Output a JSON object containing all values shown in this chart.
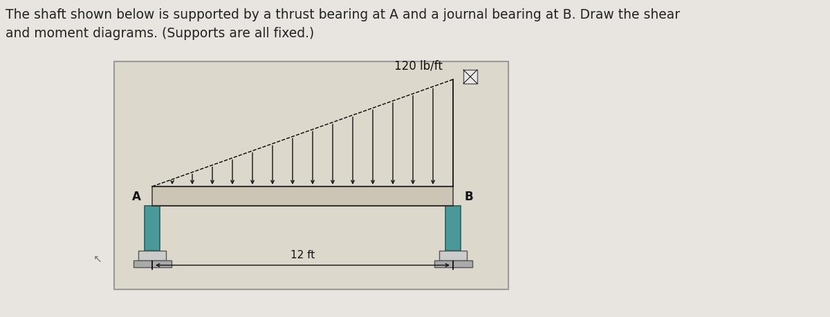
{
  "title_text": "The shaft shown below is supported by a thrust bearing at A and a journal bearing at B. Draw the shear\nand moment diagrams. (Supports are all fixed.)",
  "title_fontsize": 13.5,
  "title_color": "#222222",
  "page_bg": "#e8e4e0",
  "box_bg": "#ddd8cc",
  "box_edge": "#999999",
  "beam_color": "#ccc5b5",
  "beam_edge": "#444444",
  "beam_line_color": "#222222",
  "bearing_color": "#4a9898",
  "bearing_edge": "#2a6060",
  "base_color": "#cccccc",
  "base_edge": "#555555",
  "ground_color": "#aaaaaa",
  "arrow_color": "#111111",
  "load_label": "120 lb/ft",
  "dim_label": "12 ft",
  "label_A": "A",
  "label_B": "B",
  "label_fontsize": 12,
  "dim_fontsize": 11,
  "load_fontsize": 12,
  "fig_width": 12.0,
  "fig_height": 4.6,
  "dpi": 100,
  "num_arrows": 14,
  "cursor_symbol": "↖"
}
